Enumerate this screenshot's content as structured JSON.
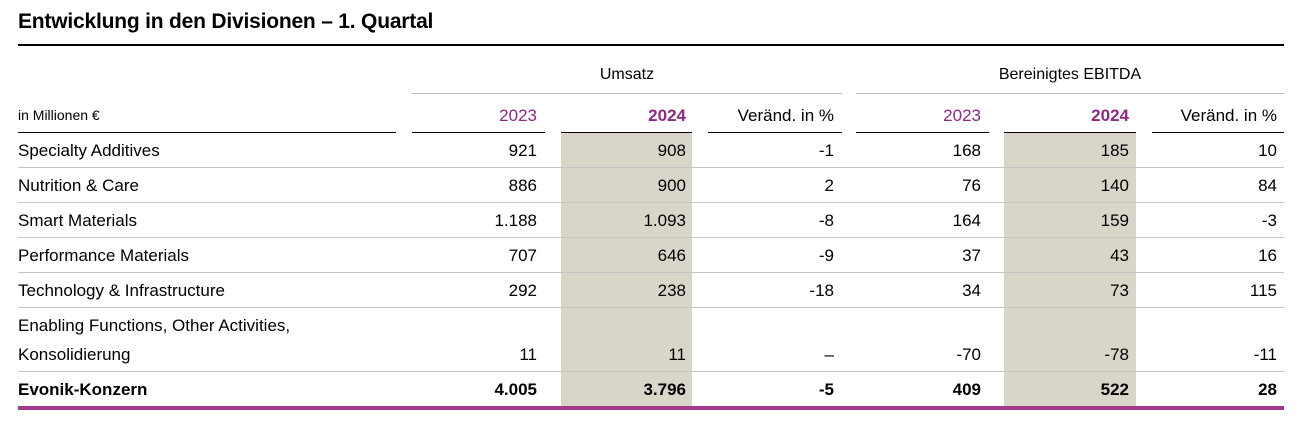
{
  "title": "Entwicklung in den Divisionen – 1. Quartal",
  "unit_label": "in Millionen €",
  "groups": [
    "Umsatz",
    "Bereinigtes EBITDA"
  ],
  "columns": [
    "2023",
    "2024",
    "Veränd. in %",
    "2023",
    "2024",
    "Veränd. in %"
  ],
  "rows": [
    {
      "label": "Specialty Additives",
      "values": [
        "921",
        "908",
        "-1",
        "168",
        "185",
        "10"
      ]
    },
    {
      "label": "Nutrition & Care",
      "values": [
        "886",
        "900",
        "2",
        "76",
        "140",
        "84"
      ]
    },
    {
      "label": "Smart Materials",
      "values": [
        "1.188",
        "1.093",
        "-8",
        "164",
        "159",
        "-3"
      ]
    },
    {
      "label": "Performance Materials",
      "values": [
        "707",
        "646",
        "-9",
        "37",
        "43",
        "16"
      ]
    },
    {
      "label": "Technology & Infrastructure",
      "values": [
        "292",
        "238",
        "-18",
        "34",
        "73",
        "115"
      ]
    },
    {
      "label": "Enabling Functions, Other Activities,",
      "label2": "Konsolidierung",
      "values": [
        "11",
        "11",
        "–",
        "-70",
        "-78",
        "-11"
      ]
    }
  ],
  "total": {
    "label": "Evonik-Konzern",
    "values": [
      "4.005",
      "3.796",
      "-5",
      "409",
      "522",
      "28"
    ]
  },
  "colors": {
    "year_accent": "#8b2a83",
    "shade": "#d9d5c9",
    "bottom_rule": "#a03c8e"
  }
}
